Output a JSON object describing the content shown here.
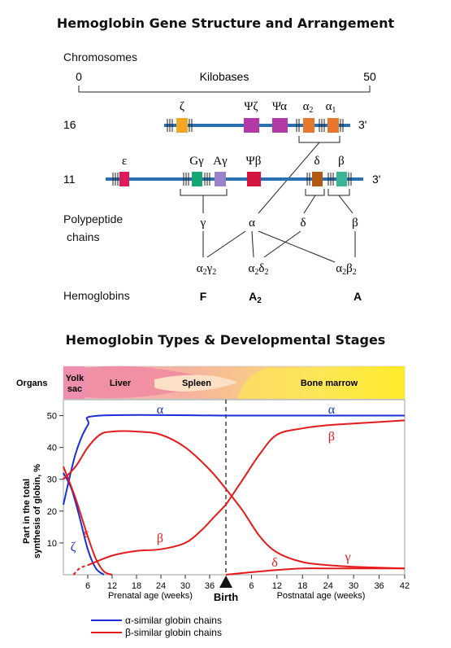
{
  "gene_diagram": {
    "title": "Hemoglobin Gene Structure and Arrangement",
    "chromosomes_label": "Chromosomes",
    "scale": {
      "start": "0",
      "end": "50",
      "unit": "Kilobases"
    },
    "chr16": {
      "number": "16",
      "end_label": "3'",
      "genes": [
        {
          "label": "ζ",
          "color": "#f5a623"
        },
        {
          "label": "Ψζ",
          "color": "#b33aa5"
        },
        {
          "label": "Ψα",
          "color": "#b33aa5"
        },
        {
          "label": "α2",
          "color": "#e8762c"
        },
        {
          "label": "α1",
          "color": "#e8762c"
        }
      ]
    },
    "chr11": {
      "number": "11",
      "end_label": "3'",
      "genes": [
        {
          "label": "ε",
          "color": "#e0195a"
        },
        {
          "label": "Gγ",
          "color": "#17a572"
        },
        {
          "label": "Aγ",
          "color": "#9b82c8"
        },
        {
          "label": "Ψβ",
          "color": "#d4163f"
        },
        {
          "label": "δ",
          "color": "#b35a16"
        },
        {
          "label": "β",
          "color": "#3bb597"
        }
      ]
    },
    "polypeptide_label_line1": "Polypeptide",
    "polypeptide_label_line2": "chains",
    "chains": [
      "γ",
      "α",
      "δ",
      "β"
    ],
    "hemoglobin_label": "Hemoglobins",
    "combos": [
      "α2γ2",
      "α2δ2",
      "α2β2"
    ],
    "hemoglobins": [
      "F",
      "A2",
      "A"
    ],
    "backbone_color": "#2a6fb0"
  },
  "dev_chart": {
    "title": "Hemoglobin Types & Developmental Stages",
    "organs_label": "Organs",
    "organs": [
      "Yolk sac",
      "Liver",
      "Spleen",
      "Bone marrow"
    ],
    "birth_label": "Birth",
    "ylabel_line1": "Part in the total",
    "ylabel_line2": "synthesis of globin, %",
    "prenatal_label": "Prenatal age (weeks)",
    "postnatal_label": "Postnatal age (weeks)",
    "legend": [
      {
        "label": "α-similar globin chains",
        "color": "#1a2fd6"
      },
      {
        "label": "β-similar globin chains",
        "color": "#e31b1b"
      }
    ]
  },
  "chart_data": {
    "type": "line",
    "ylim": [
      0,
      55
    ],
    "yticks": [
      10,
      20,
      30,
      40,
      50
    ],
    "prenatal_xticks": [
      "6",
      "12",
      "18",
      "24",
      "30",
      "36"
    ],
    "postnatal_xticks": [
      "6",
      "12",
      "18",
      "24",
      "30",
      "36",
      "42"
    ],
    "series": [
      {
        "name": "α",
        "group": "α-similar",
        "color": "#1a2fd6",
        "prenatal": [
          [
            0,
            22
          ],
          [
            3,
            38
          ],
          [
            6,
            47
          ],
          [
            9,
            50
          ],
          [
            40,
            50
          ]
        ],
        "postnatal": [
          [
            0,
            50
          ],
          [
            42,
            50
          ]
        ]
      },
      {
        "name": "ζ",
        "group": "α-similar",
        "color": "#1a2fd6",
        "prenatal": [
          [
            0,
            32
          ],
          [
            2,
            27
          ],
          [
            4,
            18
          ],
          [
            6,
            8
          ],
          [
            8,
            2
          ],
          [
            10,
            0
          ]
        ]
      },
      {
        "name": "ε",
        "group": "β-similar",
        "color": "#e31b1b",
        "prenatal": [
          [
            0,
            34
          ],
          [
            3,
            24
          ],
          [
            6,
            12
          ],
          [
            8,
            5
          ],
          [
            10,
            1
          ],
          [
            12,
            0
          ]
        ]
      },
      {
        "name": "γ",
        "group": "β-similar",
        "color": "#e31b1b",
        "prenatal": [
          [
            0,
            30
          ],
          [
            3,
            34
          ],
          [
            6,
            40
          ],
          [
            9,
            44
          ],
          [
            12,
            45
          ],
          [
            18,
            45
          ],
          [
            24,
            44
          ],
          [
            30,
            40
          ],
          [
            36,
            33
          ],
          [
            40,
            27
          ]
        ],
        "postnatal": [
          [
            0,
            27
          ],
          [
            4,
            20
          ],
          [
            8,
            12
          ],
          [
            12,
            7
          ],
          [
            18,
            4
          ],
          [
            24,
            3
          ],
          [
            30,
            2.5
          ],
          [
            42,
            2
          ]
        ]
      },
      {
        "name": "β",
        "group": "β-similar",
        "color": "#e31b1b",
        "prenatal": [
          [
            6,
            3
          ],
          [
            12,
            6
          ],
          [
            18,
            7.5
          ],
          [
            24,
            8
          ],
          [
            30,
            10
          ],
          [
            34,
            14
          ],
          [
            37,
            18
          ],
          [
            40,
            22
          ]
        ],
        "postnatal": [
          [
            0,
            22
          ],
          [
            4,
            30
          ],
          [
            8,
            38
          ],
          [
            12,
            44
          ],
          [
            18,
            46
          ],
          [
            24,
            47
          ],
          [
            30,
            47.5
          ],
          [
            42,
            48.5
          ]
        ]
      },
      {
        "name": "δ",
        "group": "β-similar",
        "color": "#e31b1b",
        "postnatal": [
          [
            0,
            0
          ],
          [
            6,
            0.8
          ],
          [
            12,
            1.5
          ],
          [
            18,
            2
          ],
          [
            24,
            2
          ],
          [
            42,
            2
          ]
        ]
      }
    ]
  }
}
